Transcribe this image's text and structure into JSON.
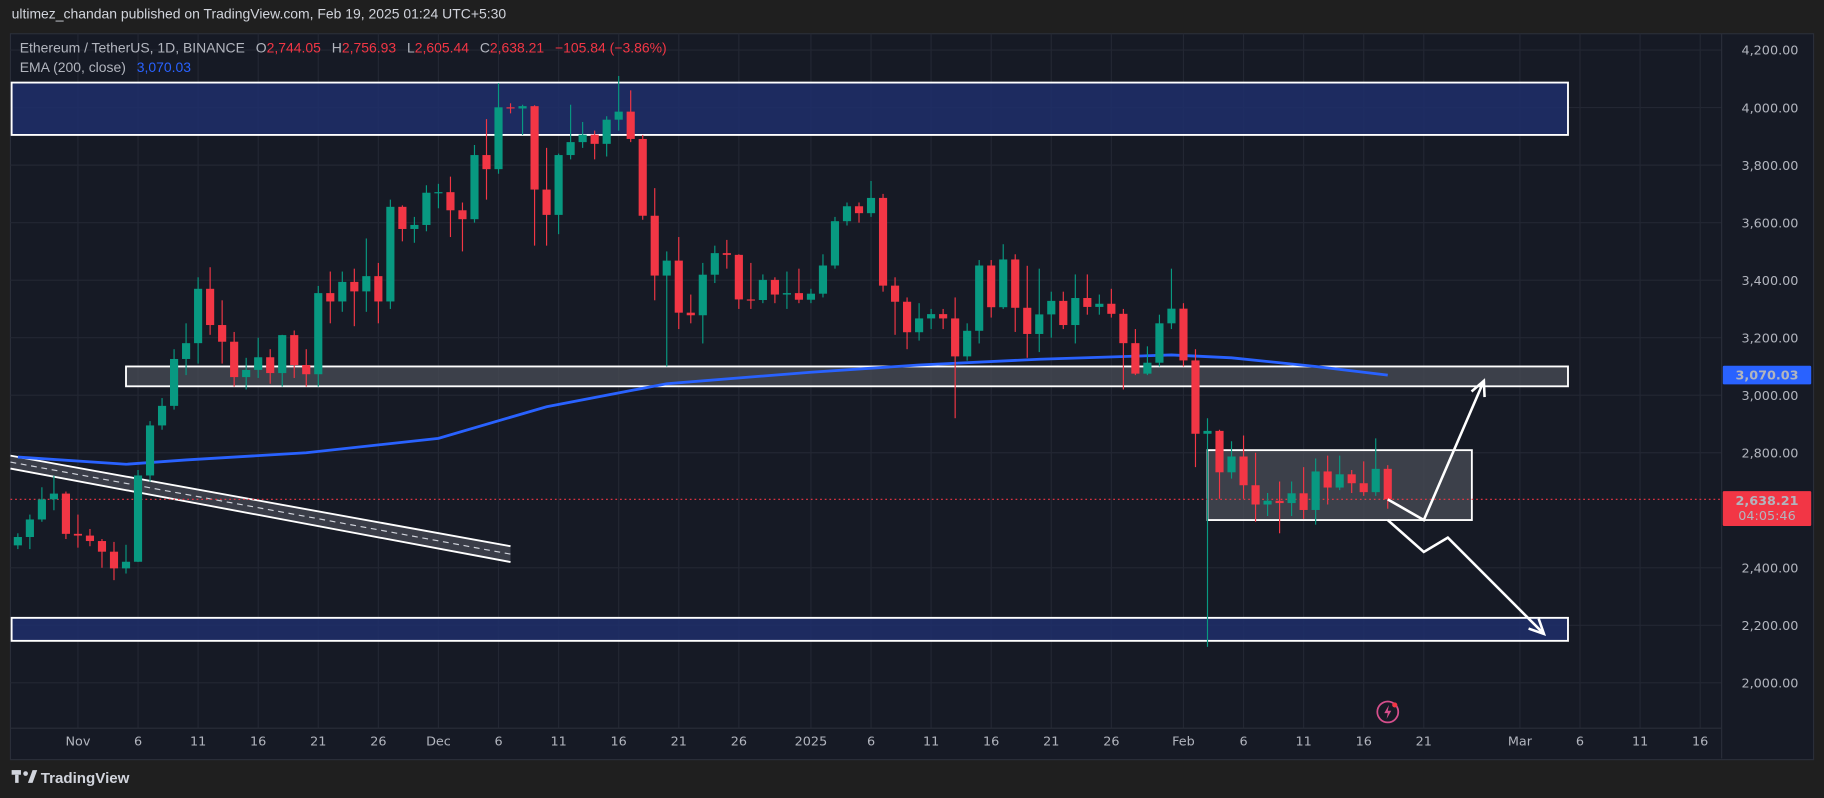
{
  "publisher_line": "ultimez_chandan published on TradingView.com, Feb 19, 2025 01:24 UTC+5:30",
  "legend": {
    "symbol": "Ethereum / TetherUS, 1D, BINANCE",
    "o_label": "O",
    "o": "2,744.05",
    "h_label": "H",
    "h": "2,756.93",
    "l_label": "L",
    "l": "2,605.44",
    "c_label": "C",
    "c": "2,638.21",
    "change": "−105.84 (−3.86%)",
    "ema_label": "EMA (200, close)",
    "ema_value": "3,070.03"
  },
  "price_badges": {
    "ema": "3,070.03",
    "last": "2,638.21",
    "countdown": "04:05:46"
  },
  "footer": {
    "logo_text": "TradingView"
  },
  "colors": {
    "up": "#089981",
    "down": "#f23645",
    "ema": "#2962ff",
    "background": "#161a25",
    "zone_blue": "#1e2f6b",
    "zone_grey": "#4a4d57"
  },
  "icons": {
    "footer_logo": "tradingview-logo-icon",
    "flash": "lightning-icon"
  },
  "chart_data": {
    "type": "candlestick",
    "title": "Ethereum / TetherUS, 1D, BINANCE",
    "ylim": [
      1900,
      4270
    ],
    "y_ticks": [
      "4,200.00",
      "4,000.00",
      "3,800.00",
      "3,600.00",
      "3,400.00",
      "3,200.00",
      "3,000.00",
      "2,800.00",
      "2,400.00",
      "2,200.00",
      "2,000.00"
    ],
    "y_tick_values": [
      4200,
      4000,
      3800,
      3600,
      3400,
      3200,
      3000,
      2800,
      2400,
      2200,
      2000
    ],
    "x_ticks": [
      {
        "label": "Nov",
        "date": "2024-11-01"
      },
      {
        "label": "6",
        "date": "2024-11-06"
      },
      {
        "label": "11",
        "date": "2024-11-11"
      },
      {
        "label": "16",
        "date": "2024-11-16"
      },
      {
        "label": "21",
        "date": "2024-11-21"
      },
      {
        "label": "26",
        "date": "2024-11-26"
      },
      {
        "label": "Dec",
        "date": "2024-12-01"
      },
      {
        "label": "6",
        "date": "2024-12-06"
      },
      {
        "label": "11",
        "date": "2024-12-11"
      },
      {
        "label": "16",
        "date": "2024-12-16"
      },
      {
        "label": "21",
        "date": "2024-12-21"
      },
      {
        "label": "26",
        "date": "2024-12-26"
      },
      {
        "label": "2025",
        "date": "2025-01-01"
      },
      {
        "label": "6",
        "date": "2025-01-06"
      },
      {
        "label": "11",
        "date": "2025-01-11"
      },
      {
        "label": "16",
        "date": "2025-01-16"
      },
      {
        "label": "21",
        "date": "2025-01-21"
      },
      {
        "label": "26",
        "date": "2025-01-26"
      },
      {
        "label": "Feb",
        "date": "2025-02-01"
      },
      {
        "label": "6",
        "date": "2025-02-06"
      },
      {
        "label": "11",
        "date": "2025-02-11"
      },
      {
        "label": "16",
        "date": "2025-02-16"
      },
      {
        "label": "21",
        "date": "2025-02-21"
      },
      {
        "label": "Mar",
        "date": "2025-03-01"
      },
      {
        "label": "6",
        "date": "2025-03-06"
      },
      {
        "label": "11",
        "date": "2025-03-11"
      },
      {
        "label": "16",
        "date": "2025-03-16"
      }
    ],
    "ohlc_columns": [
      "date",
      "open",
      "high",
      "low",
      "close"
    ],
    "ohlc": [
      [
        "2024-10-27",
        2478,
        2520,
        2465,
        2507
      ],
      [
        "2024-10-28",
        2507,
        2585,
        2465,
        2568
      ],
      [
        "2024-10-29",
        2568,
        2680,
        2560,
        2638
      ],
      [
        "2024-10-30",
        2638,
        2720,
        2600,
        2658
      ],
      [
        "2024-10-31",
        2658,
        2665,
        2500,
        2518
      ],
      [
        "2024-11-01",
        2518,
        2585,
        2470,
        2512
      ],
      [
        "2024-11-02",
        2512,
        2535,
        2475,
        2493
      ],
      [
        "2024-11-03",
        2493,
        2500,
        2400,
        2456
      ],
      [
        "2024-11-04",
        2456,
        2490,
        2357,
        2398
      ],
      [
        "2024-11-05",
        2398,
        2480,
        2380,
        2421
      ],
      [
        "2024-11-06",
        2421,
        2740,
        2420,
        2721
      ],
      [
        "2024-11-07",
        2721,
        2910,
        2700,
        2895
      ],
      [
        "2024-11-08",
        2895,
        2990,
        2880,
        2963
      ],
      [
        "2024-11-09",
        2963,
        3160,
        2950,
        3126
      ],
      [
        "2024-11-10",
        3126,
        3250,
        3070,
        3181
      ],
      [
        "2024-11-11",
        3181,
        3410,
        3110,
        3370
      ],
      [
        "2024-11-12",
        3370,
        3445,
        3210,
        3244
      ],
      [
        "2024-11-13",
        3244,
        3330,
        3110,
        3186
      ],
      [
        "2024-11-14",
        3186,
        3220,
        3030,
        3063
      ],
      [
        "2024-11-15",
        3063,
        3130,
        3020,
        3088
      ],
      [
        "2024-11-16",
        3088,
        3200,
        3060,
        3132
      ],
      [
        "2024-11-17",
        3132,
        3160,
        3040,
        3077
      ],
      [
        "2024-11-18",
        3077,
        3210,
        3030,
        3209
      ],
      [
        "2024-11-19",
        3209,
        3225,
        3060,
        3105
      ],
      [
        "2024-11-20",
        3105,
        3160,
        3030,
        3073
      ],
      [
        "2024-11-21",
        3073,
        3380,
        3030,
        3355
      ],
      [
        "2024-11-22",
        3355,
        3430,
        3250,
        3326
      ],
      [
        "2024-11-23",
        3326,
        3430,
        3290,
        3394
      ],
      [
        "2024-11-24",
        3394,
        3440,
        3240,
        3361
      ],
      [
        "2024-11-25",
        3361,
        3545,
        3290,
        3414
      ],
      [
        "2024-11-26",
        3414,
        3460,
        3250,
        3326
      ],
      [
        "2024-11-27",
        3326,
        3680,
        3300,
        3655
      ],
      [
        "2024-11-28",
        3655,
        3660,
        3535,
        3578
      ],
      [
        "2024-11-29",
        3578,
        3620,
        3530,
        3592
      ],
      [
        "2024-11-30",
        3592,
        3730,
        3570,
        3704
      ],
      [
        "2024-12-01",
        3704,
        3735,
        3650,
        3706
      ],
      [
        "2024-12-02",
        3706,
        3760,
        3550,
        3643
      ],
      [
        "2024-12-03",
        3643,
        3670,
        3500,
        3612
      ],
      [
        "2024-12-04",
        3612,
        3870,
        3600,
        3835
      ],
      [
        "2024-12-05",
        3835,
        3960,
        3680,
        3786
      ],
      [
        "2024-12-06",
        3786,
        4085,
        3770,
        4001
      ],
      [
        "2024-12-07",
        4001,
        4015,
        3980,
        3997
      ],
      [
        "2024-12-08",
        3997,
        4010,
        3905,
        4005
      ],
      [
        "2024-12-09",
        4005,
        4008,
        3520,
        3715
      ],
      [
        "2024-12-10",
        3715,
        3860,
        3520,
        3627
      ],
      [
        "2024-12-11",
        3627,
        3840,
        3560,
        3835
      ],
      [
        "2024-12-12",
        3835,
        4010,
        3820,
        3880
      ],
      [
        "2024-12-13",
        3880,
        3950,
        3860,
        3906
      ],
      [
        "2024-12-14",
        3906,
        3920,
        3820,
        3874
      ],
      [
        "2024-12-15",
        3874,
        3970,
        3830,
        3958
      ],
      [
        "2024-12-16",
        3958,
        4110,
        3920,
        3986
      ],
      [
        "2024-12-17",
        3986,
        4060,
        3880,
        3891
      ],
      [
        "2024-12-18",
        3891,
        3905,
        3610,
        3624
      ],
      [
        "2024-12-19",
        3624,
        3720,
        3330,
        3416
      ],
      [
        "2024-12-20",
        3416,
        3500,
        3100,
        3468
      ],
      [
        "2024-12-21",
        3468,
        3550,
        3230,
        3287
      ],
      [
        "2024-12-22",
        3287,
        3350,
        3250,
        3278
      ],
      [
        "2024-12-23",
        3278,
        3460,
        3180,
        3419
      ],
      [
        "2024-12-24",
        3419,
        3520,
        3390,
        3494
      ],
      [
        "2024-12-25",
        3494,
        3540,
        3440,
        3488
      ],
      [
        "2024-12-26",
        3488,
        3490,
        3300,
        3333
      ],
      [
        "2024-12-27",
        3333,
        3460,
        3300,
        3331
      ],
      [
        "2024-12-28",
        3331,
        3420,
        3320,
        3401
      ],
      [
        "2024-12-29",
        3401,
        3410,
        3320,
        3350
      ],
      [
        "2024-12-30",
        3350,
        3430,
        3300,
        3355
      ],
      [
        "2024-12-31",
        3355,
        3440,
        3320,
        3332
      ],
      [
        "2025-01-01",
        3332,
        3370,
        3320,
        3353
      ],
      [
        "2025-01-02",
        3353,
        3490,
        3340,
        3451
      ],
      [
        "2025-01-03",
        3451,
        3620,
        3440,
        3605
      ],
      [
        "2025-01-04",
        3605,
        3670,
        3590,
        3657
      ],
      [
        "2025-01-05",
        3657,
        3670,
        3600,
        3633
      ],
      [
        "2025-01-06",
        3633,
        3745,
        3620,
        3686
      ],
      [
        "2025-01-07",
        3686,
        3700,
        3360,
        3381
      ],
      [
        "2025-01-08",
        3381,
        3410,
        3210,
        3325
      ],
      [
        "2025-01-09",
        3325,
        3340,
        3160,
        3219
      ],
      [
        "2025-01-10",
        3219,
        3320,
        3190,
        3267
      ],
      [
        "2025-01-11",
        3267,
        3300,
        3230,
        3282
      ],
      [
        "2025-01-12",
        3282,
        3300,
        3230,
        3267
      ],
      [
        "2025-01-13",
        3267,
        3340,
        2920,
        3135
      ],
      [
        "2025-01-14",
        3135,
        3250,
        3120,
        3224
      ],
      [
        "2025-01-15",
        3224,
        3470,
        3180,
        3451
      ],
      [
        "2025-01-16",
        3451,
        3470,
        3270,
        3306
      ],
      [
        "2025-01-17",
        3306,
        3525,
        3300,
        3472
      ],
      [
        "2025-01-18",
        3472,
        3490,
        3220,
        3304
      ],
      [
        "2025-01-19",
        3304,
        3450,
        3130,
        3213
      ],
      [
        "2025-01-20",
        3213,
        3440,
        3150,
        3281
      ],
      [
        "2025-01-21",
        3281,
        3360,
        3200,
        3328
      ],
      [
        "2025-01-22",
        3328,
        3360,
        3230,
        3244
      ],
      [
        "2025-01-23",
        3244,
        3420,
        3180,
        3338
      ],
      [
        "2025-01-24",
        3338,
        3420,
        3280,
        3307
      ],
      [
        "2025-01-25",
        3307,
        3350,
        3280,
        3318
      ],
      [
        "2025-01-26",
        3318,
        3370,
        3270,
        3283
      ],
      [
        "2025-01-27",
        3283,
        3300,
        3020,
        3181
      ],
      [
        "2025-01-28",
        3181,
        3230,
        3070,
        3075
      ],
      [
        "2025-01-29",
        3075,
        3170,
        3070,
        3113
      ],
      [
        "2025-01-30",
        3113,
        3280,
        3100,
        3250
      ],
      [
        "2025-01-31",
        3250,
        3440,
        3230,
        3301
      ],
      [
        "2025-02-01",
        3301,
        3320,
        3100,
        3121
      ],
      [
        "2025-02-02",
        3121,
        3160,
        2750,
        2866
      ],
      [
        "2025-02-03",
        2866,
        2920,
        2125,
        2876
      ],
      [
        "2025-02-04",
        2876,
        2880,
        2640,
        2732
      ],
      [
        "2025-02-05",
        2732,
        2840,
        2710,
        2787
      ],
      [
        "2025-02-06",
        2787,
        2860,
        2640,
        2687
      ],
      [
        "2025-02-07",
        2687,
        2800,
        2560,
        2620
      ],
      [
        "2025-02-08",
        2620,
        2660,
        2580,
        2633
      ],
      [
        "2025-02-09",
        2633,
        2700,
        2520,
        2625
      ],
      [
        "2025-02-10",
        2625,
        2700,
        2580,
        2659
      ],
      [
        "2025-02-11",
        2659,
        2750,
        2570,
        2601
      ],
      [
        "2025-02-12",
        2601,
        2780,
        2550,
        2735
      ],
      [
        "2025-02-13",
        2735,
        2790,
        2620,
        2679
      ],
      [
        "2025-02-14",
        2679,
        2790,
        2670,
        2725
      ],
      [
        "2025-02-15",
        2725,
        2740,
        2660,
        2694
      ],
      [
        "2025-02-16",
        2694,
        2770,
        2650,
        2663
      ],
      [
        "2025-02-17",
        2663,
        2850,
        2650,
        2744
      ],
      [
        "2025-02-18",
        2744.05,
        2756.93,
        2605.44,
        2638.21
      ]
    ],
    "ema_200": [
      [
        "2024-10-27",
        2785
      ],
      [
        "2024-11-05",
        2760
      ],
      [
        "2024-11-10",
        2775
      ],
      [
        "2024-11-20",
        2800
      ],
      [
        "2024-12-01",
        2850
      ],
      [
        "2024-12-10",
        2960
      ],
      [
        "2024-12-20",
        3040
      ],
      [
        "2025-01-01",
        3080
      ],
      [
        "2025-01-10",
        3105
      ],
      [
        "2025-01-20",
        3125
      ],
      [
        "2025-01-31",
        3140
      ],
      [
        "2025-02-05",
        3130
      ],
      [
        "2025-02-12",
        3100
      ],
      [
        "2025-02-18",
        3070.03
      ]
    ],
    "last_price": 2638.21,
    "drawings": {
      "zones": [
        {
          "name": "resistance-zone-4000",
          "from": "2024-10-26",
          "to": "2025-03-05",
          "low": 3905,
          "high": 4087,
          "style": "blue"
        },
        {
          "name": "support-zone-3070",
          "from": "2024-11-05",
          "to": "2025-03-05",
          "low": 3031,
          "high": 3100,
          "style": "grey"
        },
        {
          "name": "support-zone-2200",
          "from": "2024-10-26",
          "to": "2025-03-05",
          "low": 2146,
          "high": 2226,
          "style": "blue"
        },
        {
          "name": "consolidation-box",
          "from": "2025-02-03",
          "to": "2025-02-25",
          "low": 2566,
          "high": 2809,
          "style": "grey"
        }
      ],
      "channel": {
        "from": "2024-10-26",
        "to": "2024-12-07",
        "top_start": 2790,
        "top_end": 2475,
        "bottom_start": 2745,
        "bottom_end": 2420
      },
      "bullish_path": [
        [
          "2025-02-18",
          2638
        ],
        [
          "2025-02-21",
          2566
        ],
        [
          "2025-02-26",
          3050
        ]
      ],
      "bearish_path": [
        [
          "2025-02-18",
          2566
        ],
        [
          "2025-02-21",
          2455
        ],
        [
          "2025-02-23",
          2505
        ],
        [
          "2025-03-03",
          2170
        ]
      ]
    }
  }
}
